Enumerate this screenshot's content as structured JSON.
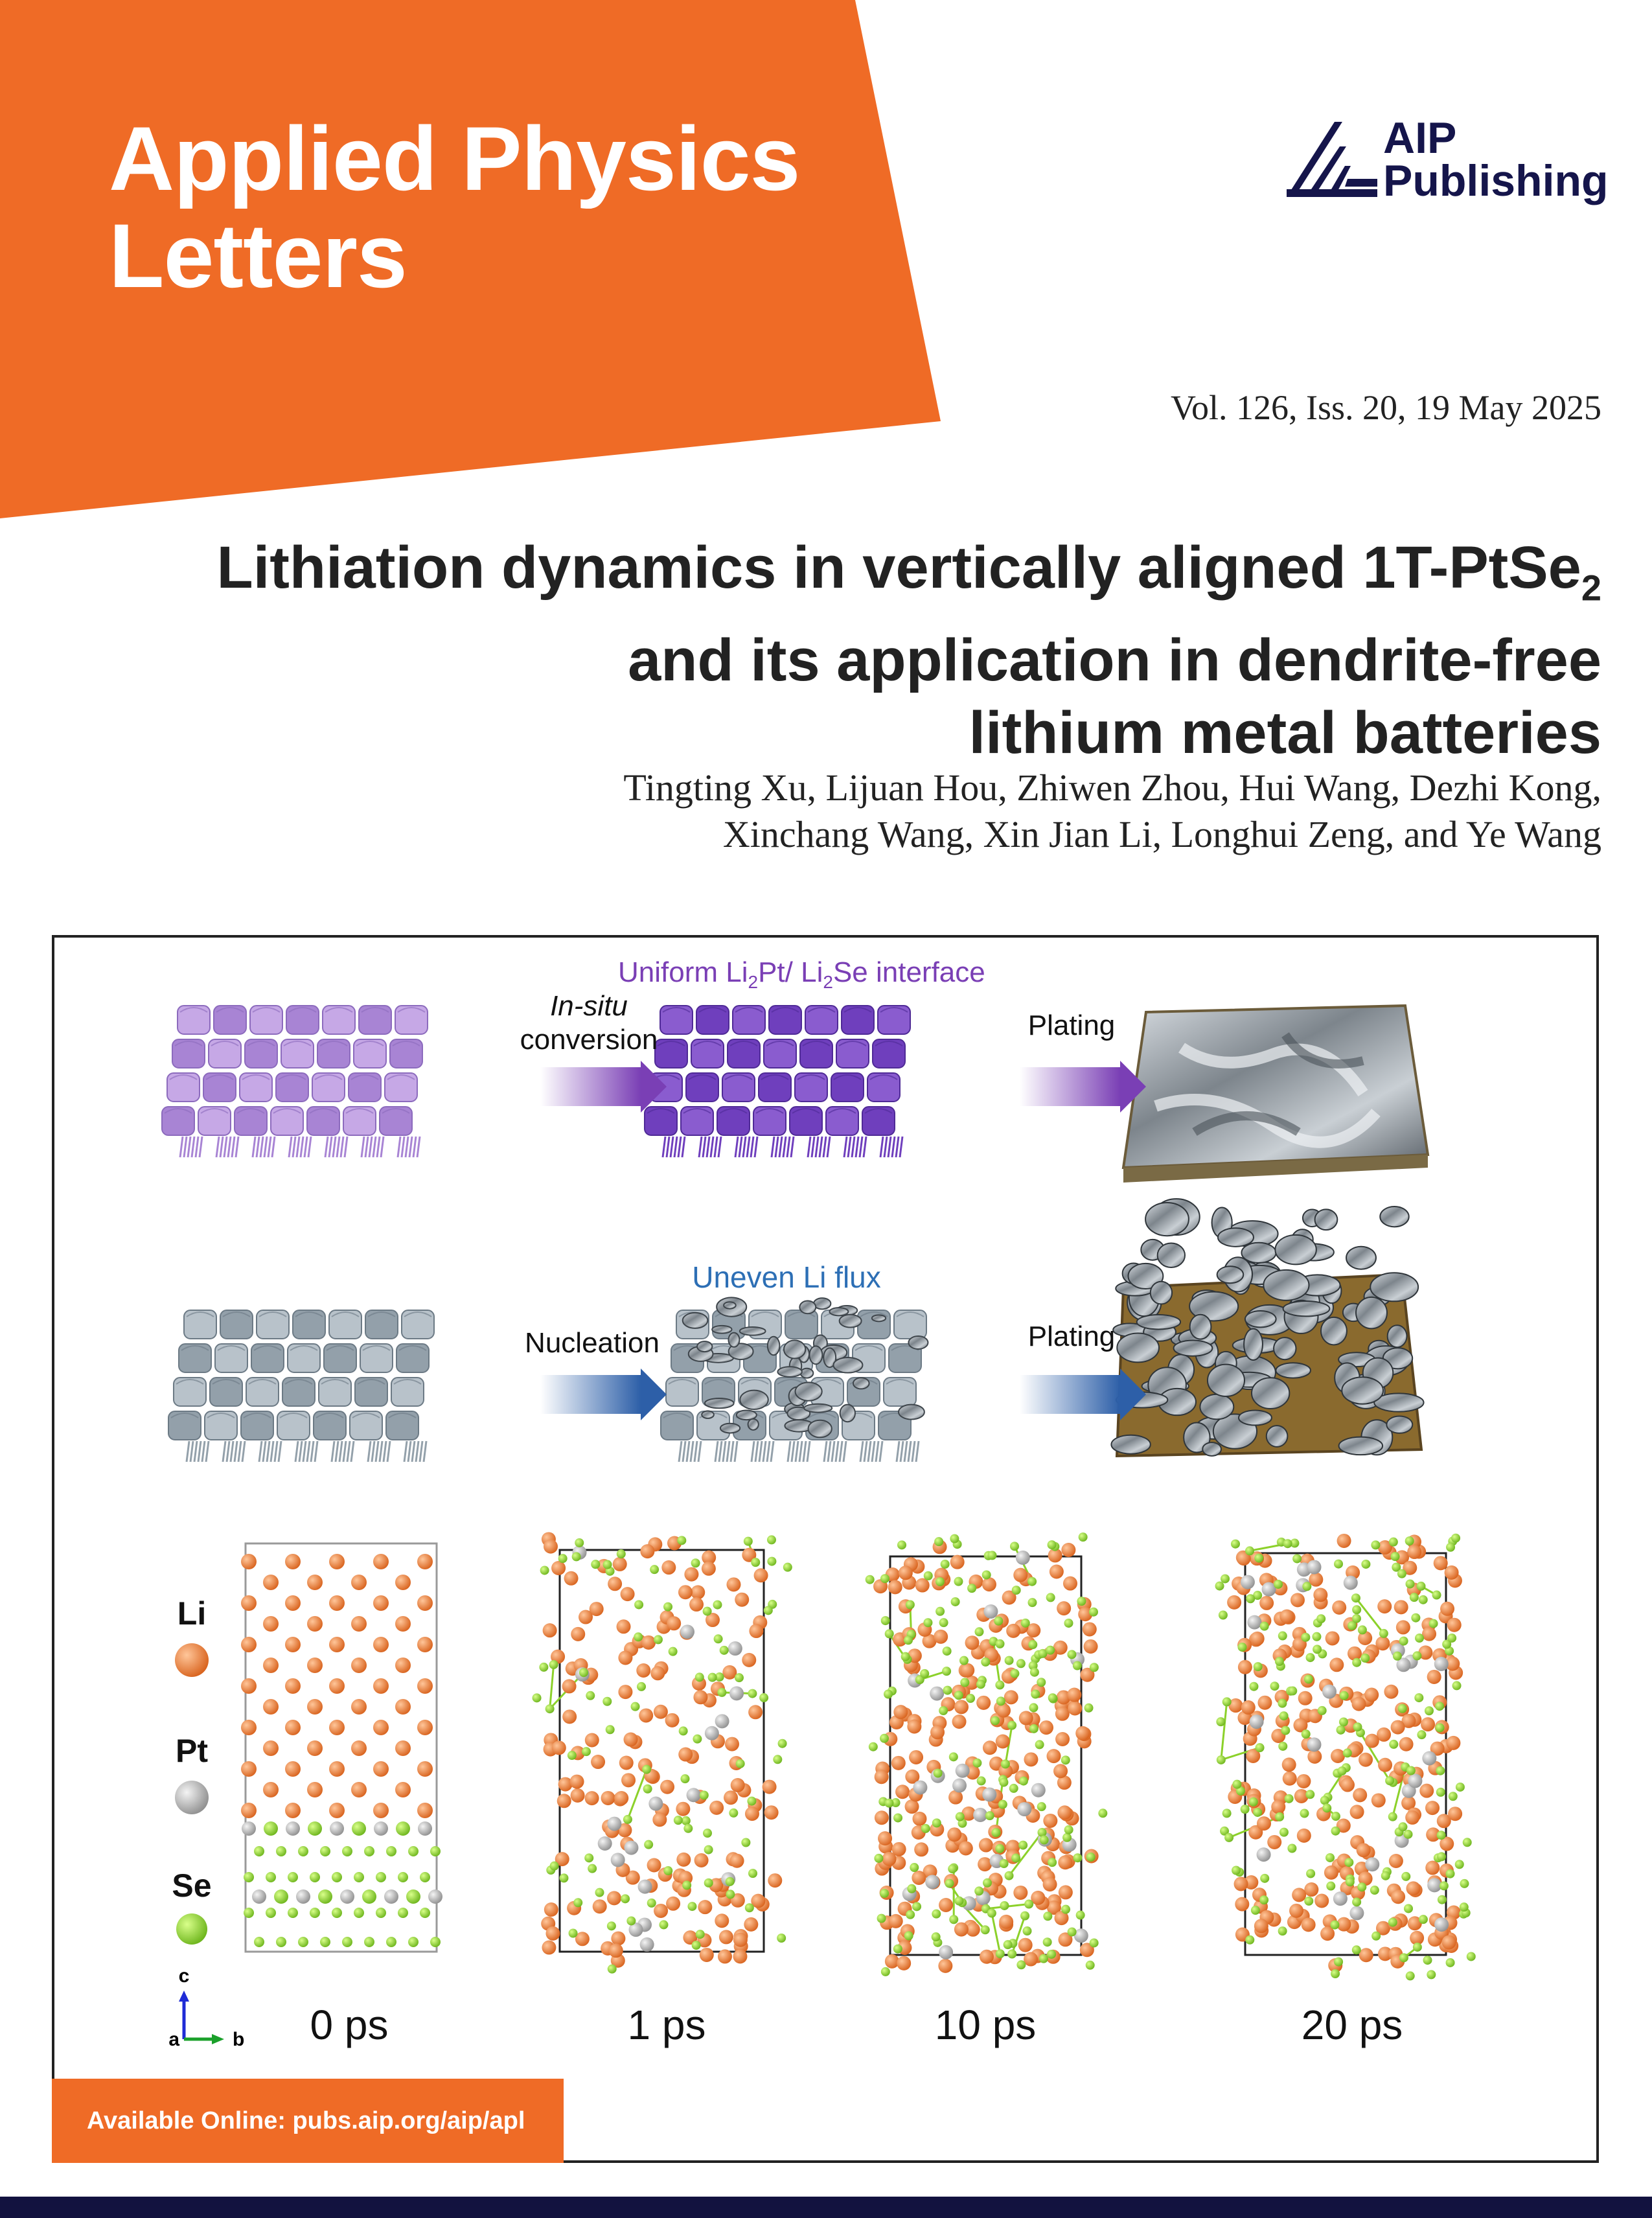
{
  "journal": {
    "title_line1": "Applied Physics",
    "title_line2": "Letters",
    "banner_color": "#ef6b26"
  },
  "publisher": {
    "line1": "AIP",
    "line2": "Publishing",
    "logo_icon": "aip-fan-logo",
    "color": "#15154b"
  },
  "issue": "Vol. 126, Iss. 20, 19 May 2025",
  "article": {
    "title_line1_pre": "Lithiation dynamics in vertically aligned 1T-PtSe",
    "title_line1_sub": "2",
    "title_line2": "and its application in dendrite-free",
    "title_line3": "lithium metal batteries",
    "authors_line1": "Tingting Xu, Lijuan Hou, Zhiwen Zhou, Hui Wang, Dezhi Kong,",
    "authors_line2": "Xinchang Wang, Xin Jian Li, Longhui Zeng, and Ye Wang"
  },
  "figure": {
    "top_row": {
      "interface_label_a": "Uniform Li",
      "interface_sub_a": "2",
      "interface_label_b": "Pt/ Li",
      "interface_sub_b": "2",
      "interface_label_c": "Se interface",
      "step1_italic": "In-situ",
      "step1_text": "conversion",
      "step2_text": "Plating",
      "color": "#7a3fb5"
    },
    "middle_row": {
      "flux_label": "Uneven Li flux",
      "step1_text": "Nucleation",
      "step2_text": "Plating",
      "color": "#2d6fb5"
    },
    "legend": [
      {
        "label": "Li",
        "color": "#e0782c"
      },
      {
        "label": "Pt",
        "color": "#b8b8b8"
      },
      {
        "label": "Se",
        "color": "#8cd12a"
      }
    ],
    "axes": {
      "c": "c",
      "a": "a",
      "b": "b"
    },
    "time_labels": [
      "0 ps",
      "1 ps",
      "10 ps",
      "20 ps"
    ]
  },
  "footer": {
    "online": "Available Online: pubs.aip.org/aip/apl",
    "bar_color": "#12123f"
  }
}
